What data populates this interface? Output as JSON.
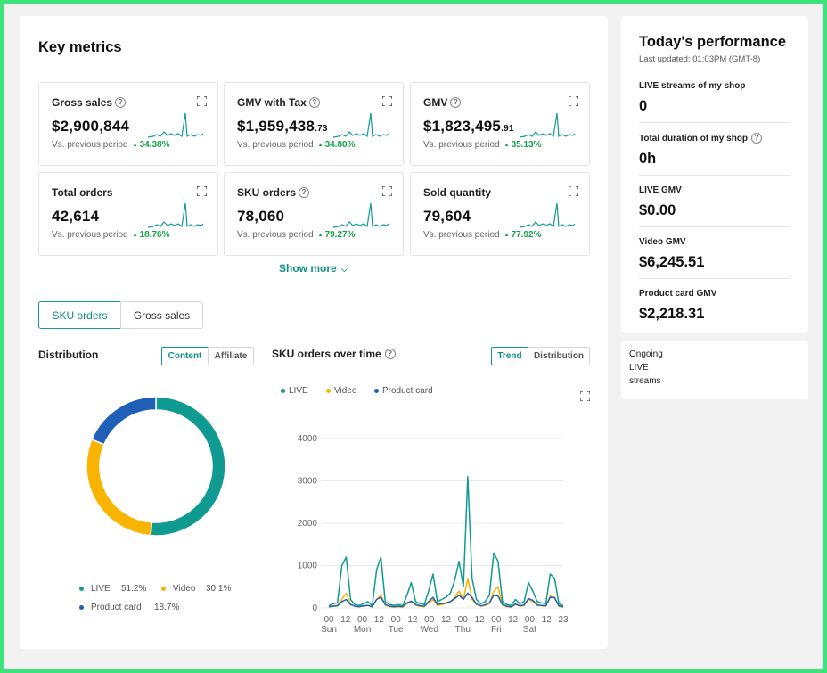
{
  "header": {
    "title": "Key metrics"
  },
  "metrics": [
    {
      "name": "Gross sales",
      "value": "$2,900,844",
      "cents": "",
      "compare": "Vs. previous period",
      "pct": "34.38%",
      "help": true
    },
    {
      "name": "GMV with Tax",
      "value": "$1,959,438",
      "cents": ".73",
      "compare": "Vs. previous period",
      "pct": "34.80%",
      "help": true
    },
    {
      "name": "GMV",
      "value": "$1,823,495",
      "cents": ".91",
      "compare": "Vs. previous period",
      "pct": "35.13%",
      "help": true
    },
    {
      "name": "Total orders",
      "value": "42,614",
      "cents": "",
      "compare": "Vs. previous period",
      "pct": "18.76%",
      "help": false
    },
    {
      "name": "SKU orders",
      "value": "78,060",
      "cents": "",
      "compare": "Vs. previous period",
      "pct": "79.27%",
      "help": true
    },
    {
      "name": "Sold quantity",
      "value": "79,604",
      "cents": "",
      "compare": "Vs. previous period",
      "pct": "77.92%",
      "help": false
    }
  ],
  "show_more": "Show more",
  "tabs": {
    "sku_orders": "SKU orders",
    "gross_sales": "Gross sales"
  },
  "distribution": {
    "title": "Distribution",
    "content_btn": "Content",
    "affiliate_btn": "Affiliate",
    "legend": [
      {
        "label": "LIVE",
        "pct": "51.2%"
      },
      {
        "label": "Video",
        "pct": "30.1%"
      },
      {
        "label": "Product card",
        "pct": "18.7%"
      }
    ]
  },
  "over_time": {
    "title": "SKU orders over time",
    "trend_btn": "Trend",
    "distribution_btn": "Distribution"
  },
  "colors": {
    "live": "#0f9b91",
    "video": "#f8b400",
    "product_card": "#1f5fb8",
    "accent": "#0f8f85"
  },
  "chart_data": [
    {
      "type": "pie",
      "title": "Distribution",
      "categories": [
        "LIVE",
        "Video",
        "Product card"
      ],
      "values": [
        51.2,
        30.1,
        18.7
      ]
    },
    {
      "type": "line",
      "title": "SKU orders over time",
      "ylim": [
        0,
        4000
      ],
      "yticks": [
        "0",
        "1000",
        "2000",
        "3000",
        "4000"
      ],
      "xticks": [
        {
          "top": "00",
          "bottom": "Sun"
        },
        {
          "top": "12",
          "bottom": ""
        },
        {
          "top": "00",
          "bottom": "Mon"
        },
        {
          "top": "12",
          "bottom": ""
        },
        {
          "top": "00",
          "bottom": "Tue"
        },
        {
          "top": "12",
          "bottom": ""
        },
        {
          "top": "00",
          "bottom": "Wed"
        },
        {
          "top": "12",
          "bottom": ""
        },
        {
          "top": "00",
          "bottom": "Thu"
        },
        {
          "top": "12",
          "bottom": ""
        },
        {
          "top": "00",
          "bottom": "Fri"
        },
        {
          "top": "12",
          "bottom": ""
        },
        {
          "top": "00",
          "bottom": "Sat"
        },
        {
          "top": "12",
          "bottom": ""
        },
        {
          "top": "23",
          "bottom": ""
        }
      ],
      "series": [
        {
          "name": "LIVE",
          "values": [
            50,
            100,
            120,
            1000,
            1200,
            200,
            80,
            60,
            100,
            150,
            50,
            900,
            1200,
            150,
            80,
            60,
            80,
            50,
            300,
            600,
            150,
            100,
            80,
            400,
            800,
            150,
            200,
            250,
            350,
            650,
            1100,
            500,
            3100,
            700,
            200,
            100,
            150,
            300,
            1300,
            1100,
            150,
            80,
            60,
            200,
            100,
            150,
            600,
            400,
            150,
            120,
            100,
            800,
            700,
            100,
            50
          ]
        },
        {
          "name": "Video",
          "values": [
            20,
            50,
            60,
            200,
            350,
            80,
            40,
            30,
            40,
            60,
            20,
            200,
            300,
            60,
            30,
            20,
            30,
            20,
            100,
            150,
            60,
            40,
            30,
            120,
            200,
            60,
            80,
            100,
            150,
            250,
            400,
            200,
            700,
            200,
            80,
            40,
            60,
            100,
            400,
            500,
            60,
            30,
            20,
            80,
            40,
            60,
            200,
            150,
            60,
            50,
            40,
            280,
            250,
            40,
            20
          ]
        },
        {
          "name": "Product card",
          "values": [
            30,
            40,
            50,
            150,
            200,
            80,
            40,
            30,
            50,
            60,
            30,
            200,
            250,
            80,
            40,
            30,
            40,
            30,
            120,
            160,
            80,
            50,
            40,
            150,
            250,
            80,
            100,
            120,
            150,
            220,
            300,
            200,
            350,
            250,
            90,
            50,
            70,
            120,
            300,
            280,
            80,
            40,
            30,
            90,
            50,
            70,
            220,
            180,
            70,
            60,
            50,
            250,
            240,
            50,
            30
          ]
        }
      ]
    }
  ],
  "today": {
    "title": "Today's performance",
    "updated": "Last updated: 01:03PM (GMT-8)",
    "items": [
      {
        "label": "LIVE streams of my shop",
        "value": "0",
        "help": false
      },
      {
        "label": "Total duration of my shop",
        "value": "0h",
        "help": true
      },
      {
        "label": "LIVE GMV",
        "value": "$0.00",
        "help": false
      },
      {
        "label": "Video GMV",
        "value": "$6,245.51",
        "help": false
      },
      {
        "label": "Product card GMV",
        "value": "$2,218.31",
        "help": false
      }
    ]
  },
  "ongoing": {
    "text": "Ongoing LIVE streams"
  }
}
